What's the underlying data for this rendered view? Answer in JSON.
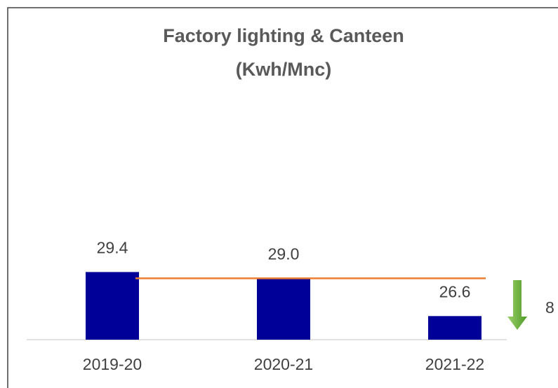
{
  "chart_data": {
    "type": "bar",
    "title": "Factory lighting & Canteen",
    "subtitle": "(Kwh/Mnc)",
    "categories": [
      "2019-20",
      "2020-21",
      "2021-22"
    ],
    "values": [
      29.4,
      29.0,
      26.6
    ],
    "value_labels": [
      "29.4",
      "29.0",
      "26.6"
    ],
    "color": "#000099",
    "ylim": [
      25.1,
      32
    ],
    "reference_line": {
      "value": 29.0,
      "color": "#ed7d31"
    },
    "annotation": "8"
  }
}
